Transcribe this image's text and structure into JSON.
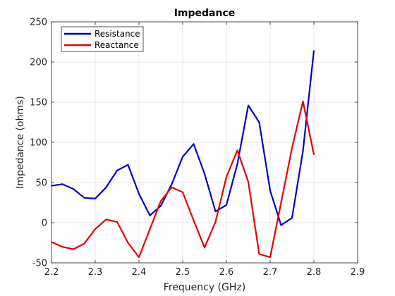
{
  "chart_data": {
    "type": "line",
    "title": "Impedance",
    "xlabel": "Frequency (GHz)",
    "ylabel": "Impedance (ohms)",
    "xlim": [
      2.2,
      2.9
    ],
    "ylim": [
      -50,
      250
    ],
    "xticks": [
      "2.2",
      "2.3",
      "2.4",
      "2.5",
      "2.6",
      "2.7",
      "2.8",
      "2.9"
    ],
    "yticks": [
      "-50",
      "0",
      "50",
      "100",
      "150",
      "200",
      "250"
    ],
    "grid": true,
    "legend_position": "top-left",
    "x": [
      2.2,
      2.225,
      2.25,
      2.275,
      2.3,
      2.325,
      2.35,
      2.375,
      2.4,
      2.425,
      2.45,
      2.475,
      2.5,
      2.525,
      2.55,
      2.575,
      2.6,
      2.625,
      2.65,
      2.675,
      2.7,
      2.725,
      2.75,
      2.775,
      2.8
    ],
    "series": [
      {
        "name": "Resistance",
        "color": "#0000cc",
        "values": [
          46,
          48,
          42,
          31,
          30,
          44,
          65,
          72,
          36,
          9,
          21,
          48,
          82,
          98,
          61,
          14,
          22,
          73,
          146,
          125,
          40,
          -3,
          6,
          89,
          214
        ]
      },
      {
        "name": "Reactance",
        "color": "#e60000",
        "values": [
          -24,
          -30,
          -33,
          -26,
          -8,
          4,
          1,
          -25,
          -43,
          -8,
          27,
          44,
          38,
          3,
          -31,
          1,
          57,
          90,
          51,
          -39,
          -43,
          25,
          93,
          151,
          85
        ]
      }
    ]
  }
}
